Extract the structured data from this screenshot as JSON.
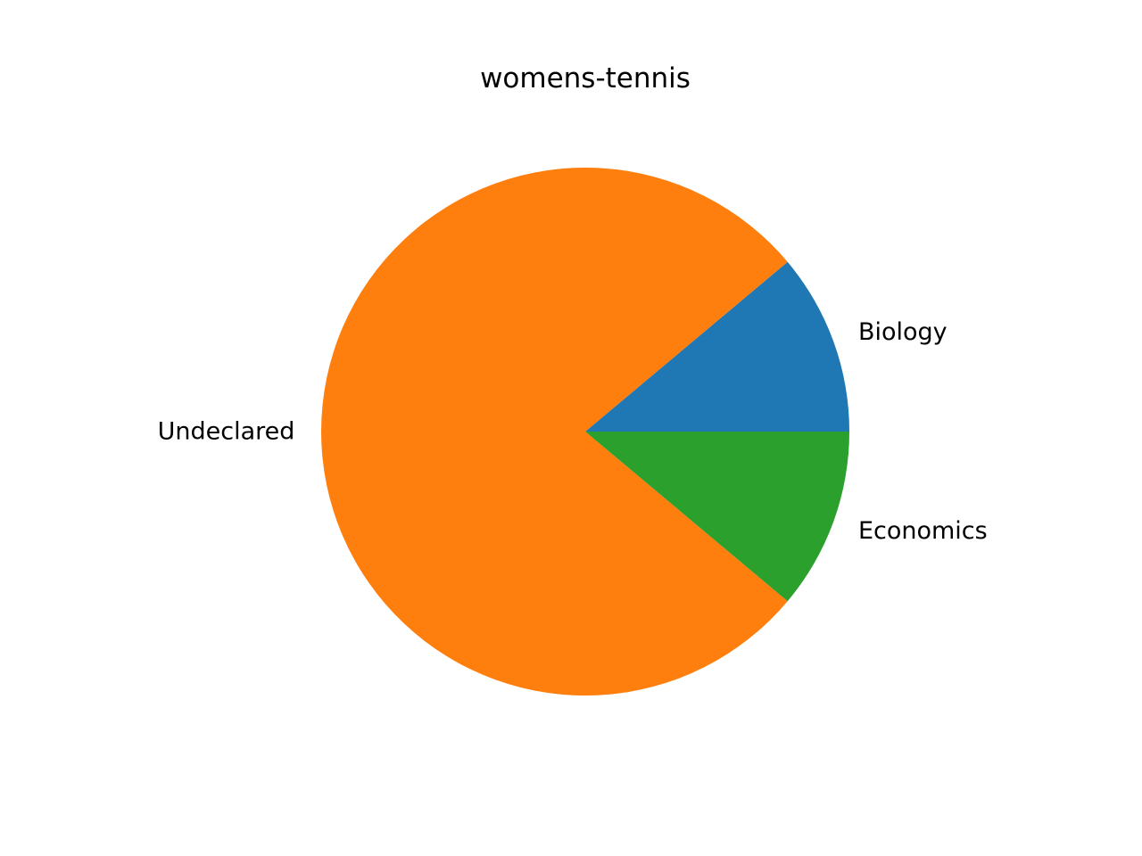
{
  "chart_data": {
    "type": "pie",
    "title": "womens-tennis",
    "slices": [
      {
        "label": "Biology",
        "value": 1,
        "color": "#1f77b4"
      },
      {
        "label": "Undeclared",
        "value": 7,
        "color": "#ff7f0e"
      },
      {
        "label": "Economics",
        "value": 1,
        "color": "#2ca02c"
      }
    ],
    "start_angle_deg": 0,
    "direction": "counterclockwise",
    "legend": "none"
  }
}
